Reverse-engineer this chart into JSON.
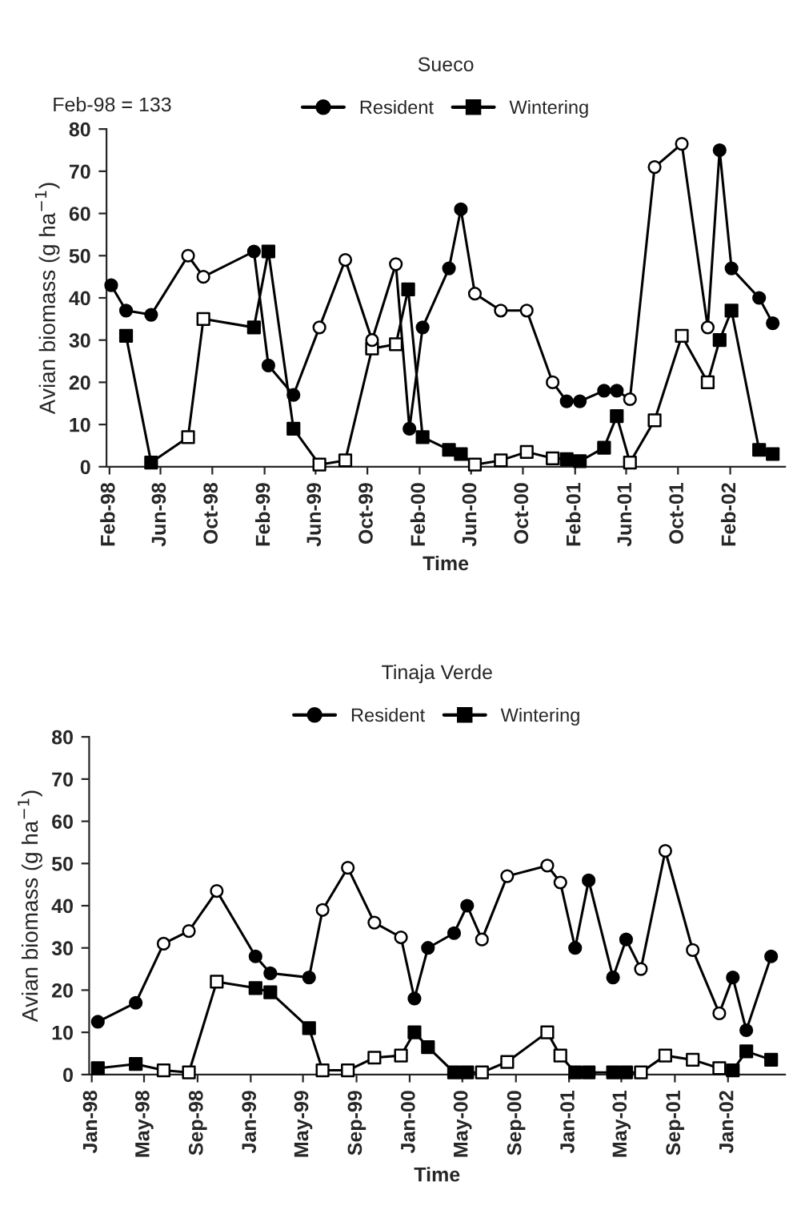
{
  "chart_data": [
    {
      "type": "line",
      "title": "Sueco",
      "xlabel": "Time",
      "ylabel": "Avian biomass (g ha$^{−1}$)",
      "annotations": [
        "Feb-98 = 133"
      ],
      "legend": "top",
      "grid": false,
      "xlim": [
        "1998-01-25",
        "2002-06-10"
      ],
      "ylim": [
        0,
        80
      ],
      "yticks": [
        0,
        10,
        20,
        30,
        40,
        50,
        60,
        70,
        80
      ],
      "xticks": [
        {
          "value": "1998-02-01",
          "label": "Feb-98"
        },
        {
          "value": "1998-06-01",
          "label": "Jun-98"
        },
        {
          "value": "1998-10-01",
          "label": "Oct-98"
        },
        {
          "value": "1999-02-01",
          "label": "Feb-99"
        },
        {
          "value": "1999-06-01",
          "label": "Jun-99"
        },
        {
          "value": "1999-10-01",
          "label": "Oct-99"
        },
        {
          "value": "2000-02-01",
          "label": "Feb-00"
        },
        {
          "value": "2000-06-01",
          "label": "Jun-00"
        },
        {
          "value": "2000-10-01",
          "label": "Oct-00"
        },
        {
          "value": "2001-02-01",
          "label": "Feb-01"
        },
        {
          "value": "2001-06-01",
          "label": "Jun-01"
        },
        {
          "value": "2001-10-01",
          "label": "Oct-01"
        },
        {
          "value": "2002-02-01",
          "label": "Feb-02"
        }
      ],
      "series": [
        {
          "name": "Resident",
          "color": "#000000",
          "marker": "circle",
          "x": [
            "1998-02-05",
            "1998-03-12",
            "1998-05-10",
            "1998-08-05",
            "1998-09-10",
            "1999-01-07",
            "1999-02-10",
            "1999-04-10",
            "1999-06-10",
            "1999-08-10",
            "1999-10-12",
            "1999-12-07",
            "2000-01-08",
            "2000-02-08",
            "2000-04-10",
            "2000-05-08",
            "2000-06-10",
            "2000-08-10",
            "2000-10-10",
            "2000-12-10",
            "2001-01-12",
            "2001-02-12",
            "2001-04-10",
            "2001-05-10",
            "2001-06-10",
            "2001-08-07",
            "2001-10-10",
            "2001-12-10",
            "2002-01-07",
            "2002-02-04",
            "2002-04-10",
            "2002-05-12"
          ],
          "values": [
            43,
            37,
            36,
            50,
            45,
            51,
            24,
            17,
            33,
            49,
            30,
            48,
            9,
            33,
            47,
            61,
            41,
            37,
            37,
            20,
            15.5,
            15.5,
            18,
            18,
            16,
            71,
            76.5,
            33,
            75,
            47,
            40,
            34
          ],
          "colors": [
            "#000000",
            "#000000",
            "#000000",
            "#ffffff",
            "#ffffff",
            "#000000",
            "#000000",
            "#000000",
            "#ffffff",
            "#ffffff",
            "#ffffff",
            "#ffffff",
            "#000000",
            "#000000",
            "#000000",
            "#000000",
            "#ffffff",
            "#ffffff",
            "#ffffff",
            "#ffffff",
            "#000000",
            "#000000",
            "#000000",
            "#000000",
            "#ffffff",
            "#ffffff",
            "#ffffff",
            "#ffffff",
            "#000000",
            "#000000",
            "#000000",
            "#000000"
          ]
        },
        {
          "name": "Wintering",
          "color": "#000000",
          "marker": "square",
          "x": [
            "1998-03-12",
            "1998-05-10",
            "1998-08-05",
            "1998-09-10",
            "1999-01-07",
            "1999-02-10",
            "1999-04-10",
            "1999-06-10",
            "1999-08-10",
            "1999-10-12",
            "1999-12-07",
            "2000-01-05",
            "2000-02-08",
            "2000-04-10",
            "2000-05-08",
            "2000-06-10",
            "2000-08-10",
            "2000-10-10",
            "2000-12-10",
            "2001-01-12",
            "2001-02-12",
            "2001-04-10",
            "2001-05-10",
            "2001-06-10",
            "2001-08-07",
            "2001-10-10",
            "2001-12-10",
            "2002-01-07",
            "2002-02-04",
            "2002-04-10",
            "2002-05-12"
          ],
          "values": [
            31,
            1,
            7,
            35,
            33,
            51,
            9,
            0.5,
            1.5,
            28,
            29,
            42,
            7,
            4,
            3,
            0.5,
            1.5,
            3.5,
            2,
            1.8,
            1.3,
            4.5,
            12,
            1,
            11,
            31,
            20,
            30,
            37,
            4,
            3
          ],
          "colors": [
            "#000000",
            "#000000",
            "#ffffff",
            "#ffffff",
            "#000000",
            "#000000",
            "#000000",
            "#ffffff",
            "#ffffff",
            "#ffffff",
            "#ffffff",
            "#000000",
            "#000000",
            "#000000",
            "#000000",
            "#ffffff",
            "#ffffff",
            "#ffffff",
            "#ffffff",
            "#000000",
            "#000000",
            "#000000",
            "#000000",
            "#ffffff",
            "#ffffff",
            "#ffffff",
            "#ffffff",
            "#000000",
            "#000000",
            "#000000",
            "#000000"
          ]
        }
      ]
    },
    {
      "type": "line",
      "title": "Tinaja Verde",
      "xlabel": "Time",
      "ylabel": "Avian biomass (g ha$^{−1}$)",
      "legend": "top",
      "grid": false,
      "xlim": [
        "1997-12-26",
        "2002-05-12"
      ],
      "ylim": [
        0,
        80
      ],
      "yticks": [
        0,
        10,
        20,
        30,
        40,
        50,
        60,
        70,
        80
      ],
      "xticks": [
        {
          "value": "1998-01-01",
          "label": "Jan-98"
        },
        {
          "value": "1998-05-01",
          "label": "May-98"
        },
        {
          "value": "1998-09-01",
          "label": "Sep-98"
        },
        {
          "value": "1999-01-01",
          "label": "Jan-99"
        },
        {
          "value": "1999-05-01",
          "label": "May-99"
        },
        {
          "value": "1999-09-01",
          "label": "Sep-99"
        },
        {
          "value": "2000-01-01",
          "label": "Jan-00"
        },
        {
          "value": "2000-05-01",
          "label": "May-00"
        },
        {
          "value": "2000-09-01",
          "label": "Sep-00"
        },
        {
          "value": "2001-01-01",
          "label": "Jan-01"
        },
        {
          "value": "2001-05-01",
          "label": "May-01"
        },
        {
          "value": "2001-09-01",
          "label": "Sep-01"
        },
        {
          "value": "2002-01-01",
          "label": "Jan-02"
        }
      ],
      "series": [
        {
          "name": "Resident",
          "color": "#000000",
          "marker": "circle",
          "x": [
            "1998-01-15",
            "1998-04-12",
            "1998-06-15",
            "1998-08-12",
            "1998-10-15",
            "1999-01-12",
            "1999-02-15",
            "1999-05-15",
            "1999-06-15",
            "1999-08-12",
            "1999-10-12",
            "1999-12-12",
            "2000-01-12",
            "2000-02-12",
            "2000-04-12",
            "2000-05-12",
            "2000-06-15",
            "2000-08-12",
            "2000-11-12",
            "2000-12-12",
            "2001-01-15",
            "2001-02-15",
            "2001-04-12",
            "2001-05-12",
            "2001-06-15",
            "2001-08-10",
            "2001-10-12",
            "2001-12-12",
            "2002-01-12",
            "2002-02-12",
            "2002-04-10"
          ],
          "values": [
            12.5,
            17,
            31,
            34,
            43.5,
            28,
            24,
            23,
            39,
            49,
            36,
            32.5,
            18,
            30,
            33.5,
            40,
            32,
            47,
            49.5,
            45.5,
            30,
            46,
            23,
            32,
            25,
            53,
            29.5,
            14.5,
            23,
            10.5,
            28
          ],
          "colors": [
            "#000000",
            "#000000",
            "#ffffff",
            "#ffffff",
            "#ffffff",
            "#000000",
            "#000000",
            "#000000",
            "#ffffff",
            "#ffffff",
            "#ffffff",
            "#ffffff",
            "#000000",
            "#000000",
            "#000000",
            "#000000",
            "#ffffff",
            "#ffffff",
            "#ffffff",
            "#ffffff",
            "#000000",
            "#000000",
            "#000000",
            "#000000",
            "#ffffff",
            "#ffffff",
            "#ffffff",
            "#ffffff",
            "#000000",
            "#000000",
            "#000000"
          ]
        },
        {
          "name": "Wintering",
          "color": "#000000",
          "marker": "square",
          "x": [
            "1998-01-15",
            "1998-04-12",
            "1998-06-15",
            "1998-08-12",
            "1998-10-15",
            "1999-01-12",
            "1999-02-15",
            "1999-05-15",
            "1999-06-15",
            "1999-08-12",
            "1999-10-12",
            "1999-12-12",
            "2000-01-12",
            "2000-02-12",
            "2000-04-12",
            "2000-05-12",
            "2000-06-15",
            "2000-08-12",
            "2000-11-12",
            "2000-12-12",
            "2001-01-15",
            "2001-02-15",
            "2001-04-12",
            "2001-05-12",
            "2001-06-15",
            "2001-08-10",
            "2001-10-12",
            "2001-12-12",
            "2002-01-12",
            "2002-02-12",
            "2002-04-10"
          ],
          "values": [
            1.5,
            2.5,
            1,
            0.5,
            22,
            20.5,
            19.5,
            11,
            1,
            1,
            4,
            4.5,
            10,
            6.5,
            0.5,
            0.5,
            0.5,
            3,
            10,
            4.5,
            0.5,
            0.5,
            0.5,
            0.5,
            0.5,
            4.5,
            3.5,
            1.5,
            1,
            5.5,
            3.5
          ],
          "colors": [
            "#000000",
            "#000000",
            "#ffffff",
            "#ffffff",
            "#ffffff",
            "#000000",
            "#000000",
            "#000000",
            "#ffffff",
            "#ffffff",
            "#ffffff",
            "#ffffff",
            "#000000",
            "#000000",
            "#000000",
            "#000000",
            "#ffffff",
            "#ffffff",
            "#ffffff",
            "#ffffff",
            "#000000",
            "#000000",
            "#000000",
            "#000000",
            "#ffffff",
            "#ffffff",
            "#ffffff",
            "#ffffff",
            "#000000",
            "#000000",
            "#000000"
          ]
        }
      ]
    }
  ]
}
